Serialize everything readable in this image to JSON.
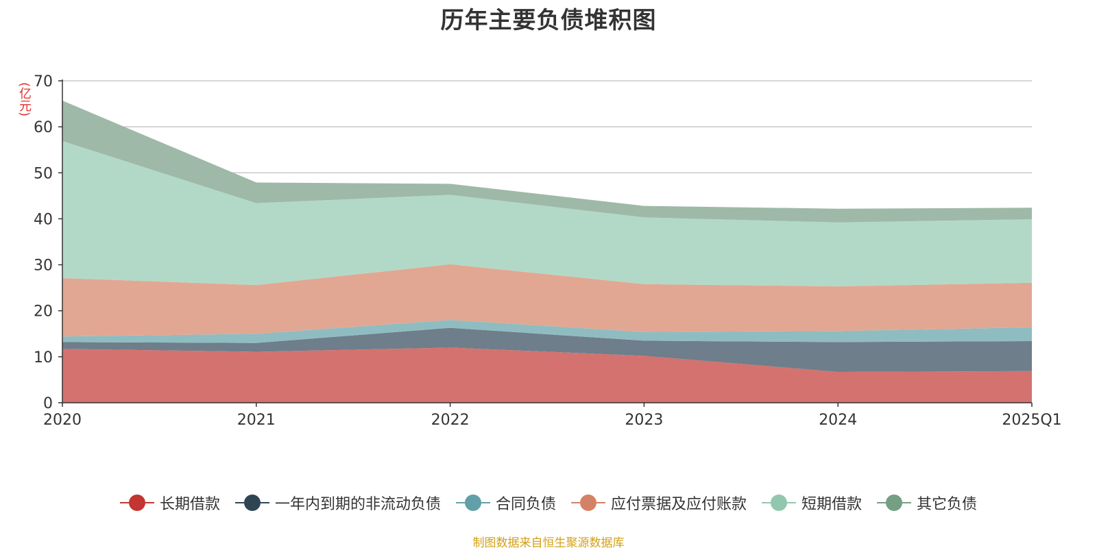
{
  "chart_data": {
    "type": "area",
    "title": "历年主要负债堆积图",
    "unit_label": "(亿元)",
    "categories": [
      "2020",
      "2021",
      "2022",
      "2023",
      "2024",
      "2025Q1"
    ],
    "ylim": [
      0,
      70
    ],
    "yticks": [
      "0",
      "10",
      "20",
      "30",
      "40",
      "50",
      "60",
      "70"
    ],
    "grid": true,
    "legend_position": "bottom",
    "stacked": true,
    "series": [
      {
        "name": "长期借款",
        "values": [
          11.7,
          11.1,
          12.0,
          10.2,
          6.7,
          6.9
        ],
        "color": "#c23531",
        "fill": "#d4726f"
      },
      {
        "name": "一年内到期的非流动负债",
        "values": [
          1.5,
          1.9,
          4.3,
          3.3,
          6.5,
          6.5
        ],
        "color": "#2f4554",
        "fill": "#6e7e8a"
      },
      {
        "name": "合同负债",
        "values": [
          1.2,
          2.0,
          1.7,
          1.9,
          2.4,
          3.0
        ],
        "color": "#61a0a8",
        "fill": "#8fbcc1"
      },
      {
        "name": "应付票据及应付账款",
        "values": [
          12.7,
          10.6,
          12.1,
          10.4,
          9.7,
          9.7
        ],
        "color": "#d48265",
        "fill": "#e1a793"
      },
      {
        "name": "短期借款",
        "values": [
          29.8,
          17.8,
          15.1,
          14.5,
          13.9,
          13.8
        ],
        "color": "#91c7ae",
        "fill": "#b2d9c7"
      },
      {
        "name": "其它负债",
        "values": [
          8.8,
          4.5,
          2.4,
          2.5,
          3.0,
          2.5
        ],
        "color": "#749f83",
        "fill": "#9fb9a8"
      }
    ],
    "source_note": "制图数据来自恒生聚源数据库"
  }
}
